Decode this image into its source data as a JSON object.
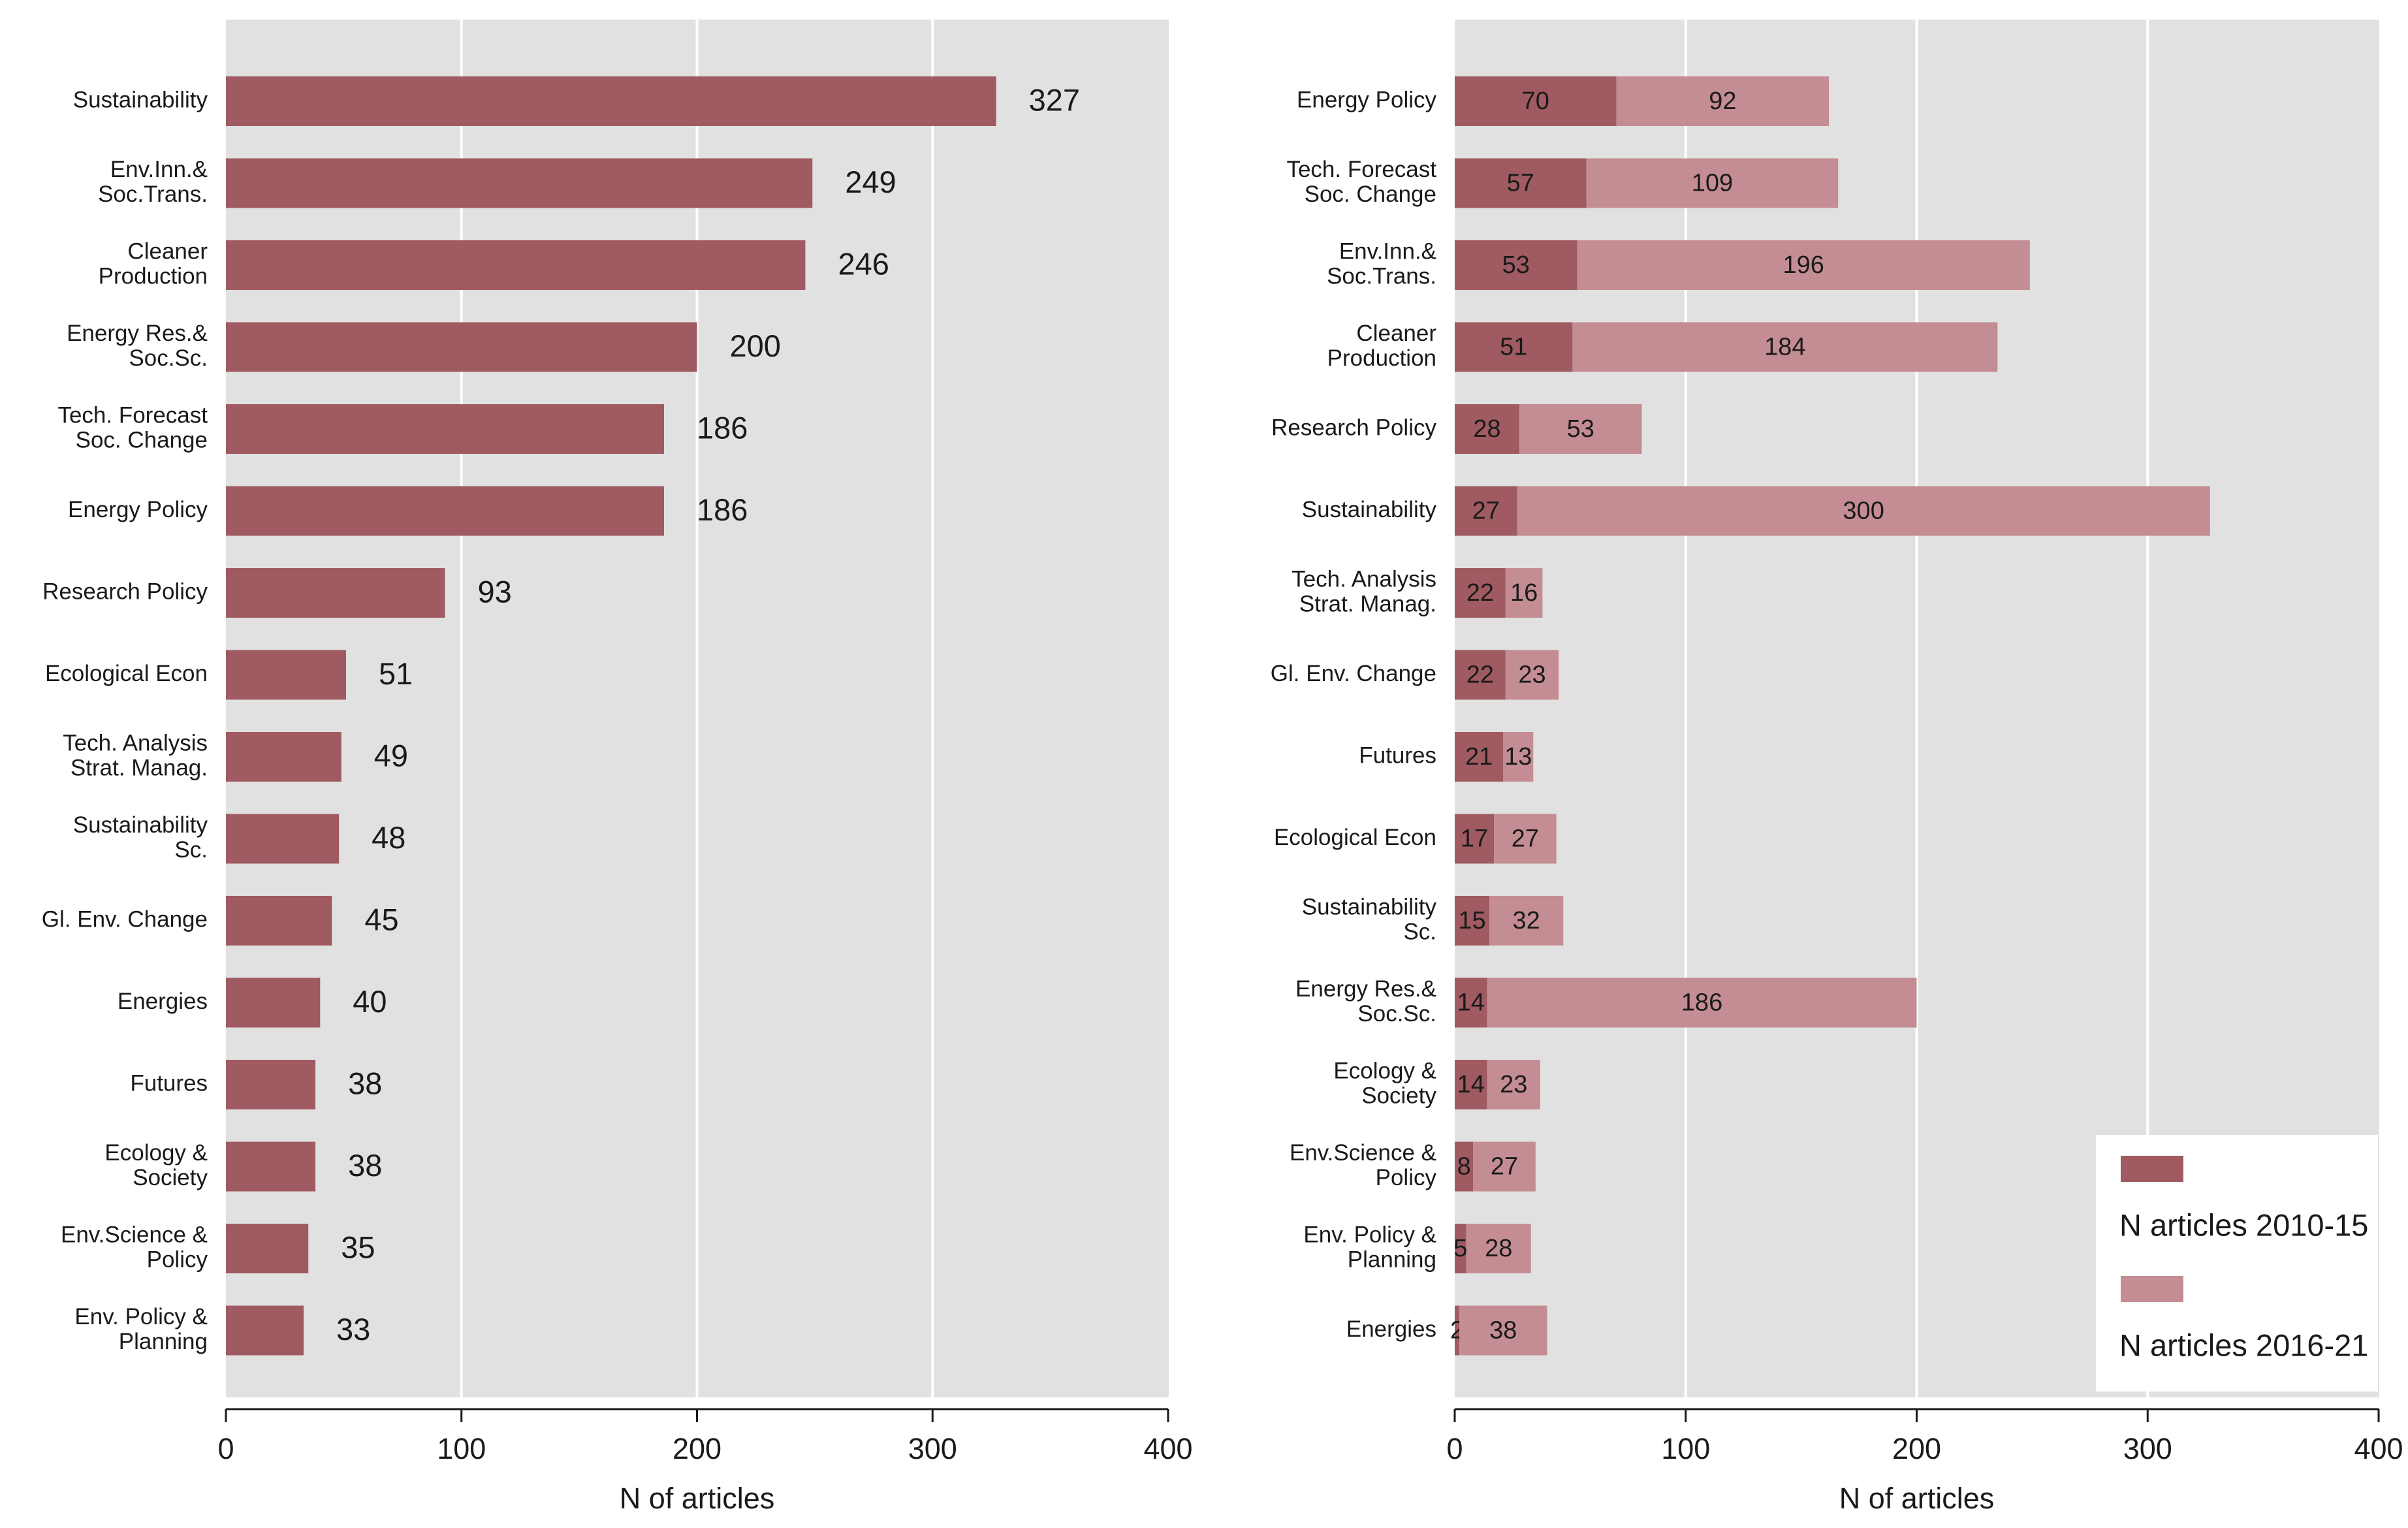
{
  "colors": {
    "plot_bg": "#e1e1e1",
    "grid": "#ffffff",
    "bar_dark": "#a05a62",
    "bar_light": "#c48d93",
    "axis": "#1a1a1a"
  },
  "chart_data": [
    {
      "type": "bar",
      "orientation": "horizontal",
      "categories": [
        [
          "Sustainability"
        ],
        [
          "Env.Inn.&",
          "Soc.Trans."
        ],
        [
          "Cleaner",
          "Production"
        ],
        [
          "Energy Res.&",
          "Soc.Sc."
        ],
        [
          "Tech. Forecast",
          "Soc. Change"
        ],
        [
          "Energy Policy"
        ],
        [
          "Research Policy"
        ],
        [
          "Ecological Econ"
        ],
        [
          "Tech. Analysis",
          "Strat. Manag."
        ],
        [
          "Sustainability",
          "Sc."
        ],
        [
          "Gl. Env. Change"
        ],
        [
          "Energies"
        ],
        [
          "Futures"
        ],
        [
          "Ecology &",
          "Society"
        ],
        [
          "Env.Science &",
          "Policy"
        ],
        [
          "Env. Policy &",
          "Planning"
        ]
      ],
      "values": [
        327,
        249,
        246,
        200,
        186,
        186,
        93,
        51,
        49,
        48,
        45,
        40,
        38,
        38,
        35,
        33
      ],
      "xlabel": "N of articles",
      "xlim": [
        0,
        400
      ],
      "xticks": [
        0,
        100,
        200,
        300,
        400
      ],
      "grid": true
    },
    {
      "type": "bar",
      "orientation": "horizontal",
      "stacked": true,
      "categories": [
        [
          "Energy Policy"
        ],
        [
          "Tech. Forecast",
          "Soc. Change"
        ],
        [
          "Env.Inn.&",
          "Soc.Trans."
        ],
        [
          "Cleaner",
          "Production"
        ],
        [
          "Research Policy"
        ],
        [
          "Sustainability"
        ],
        [
          "Tech. Analysis",
          "Strat. Manag."
        ],
        [
          "Gl. Env. Change"
        ],
        [
          "Futures"
        ],
        [
          "Ecological Econ"
        ],
        [
          "Sustainability",
          "Sc."
        ],
        [
          "Energy Res.&",
          "Soc.Sc."
        ],
        [
          "Ecology &",
          "Society"
        ],
        [
          "Env.Science &",
          "Policy"
        ],
        [
          "Env. Policy &",
          "Planning"
        ],
        [
          "Energies"
        ]
      ],
      "series": [
        {
          "name": "N articles 2010-15",
          "values": [
            70,
            57,
            53,
            51,
            28,
            27,
            22,
            22,
            21,
            17,
            15,
            14,
            14,
            8,
            5,
            2
          ]
        },
        {
          "name": "N articles 2016-21",
          "values": [
            92,
            109,
            196,
            184,
            53,
            300,
            16,
            23,
            13,
            27,
            32,
            186,
            23,
            27,
            28,
            38
          ]
        }
      ],
      "xlabel": "N of articles",
      "xlim": [
        0,
        400
      ],
      "xticks": [
        0,
        100,
        200,
        300,
        400
      ],
      "grid": true,
      "legend_position": "bottom-right"
    }
  ]
}
